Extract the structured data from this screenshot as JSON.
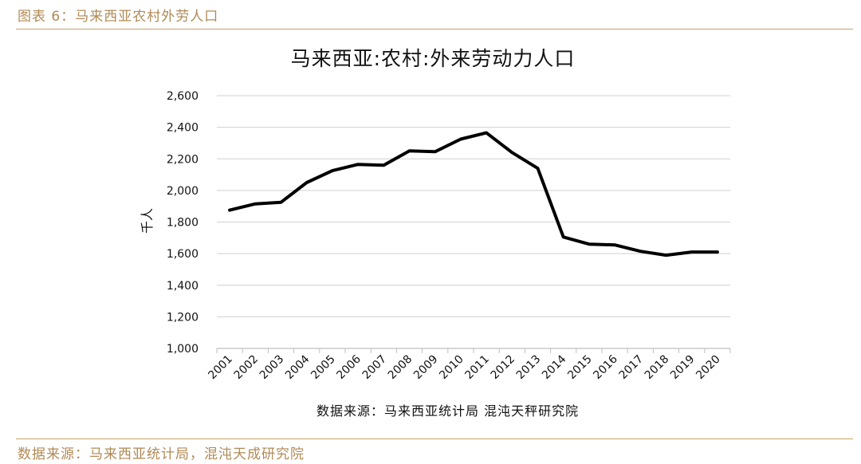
{
  "figure": {
    "caption": "图表 6：马来西亚农村外劳人口",
    "source": "数据来源：马来西亚统计局，混沌天成研究院"
  },
  "chart_data": {
    "type": "line",
    "title": "马来西亚:农村:外来劳动力人口",
    "xlabel": "",
    "ylabel": "千人",
    "source_note": "数据来源：马来西亚统计局 混沌天秤研究院",
    "ylim": [
      1000,
      2600
    ],
    "yticks": [
      "1,000",
      "1,200",
      "1,400",
      "1,600",
      "1,800",
      "2,000",
      "2,200",
      "2,400",
      "2,600"
    ],
    "ytick_values": [
      1000,
      1200,
      1400,
      1600,
      1800,
      2000,
      2200,
      2400,
      2600
    ],
    "categories": [
      "2001",
      "2002",
      "2003",
      "2004",
      "2005",
      "2006",
      "2007",
      "2008",
      "2009",
      "2010",
      "2011",
      "2012",
      "2013",
      "2014",
      "2015",
      "2016",
      "2017",
      "2018",
      "2019",
      "2020"
    ],
    "series": [
      {
        "values": [
          1875,
          1915,
          1925,
          2050,
          2125,
          2165,
          2160,
          2250,
          2245,
          2325,
          2365,
          2240,
          2140,
          1705,
          1660,
          1655,
          1615,
          1590,
          1610,
          1610
        ]
      }
    ],
    "grid": true,
    "legend": "none",
    "line_color": "#000000",
    "grid_color": "#d9d9d9"
  }
}
